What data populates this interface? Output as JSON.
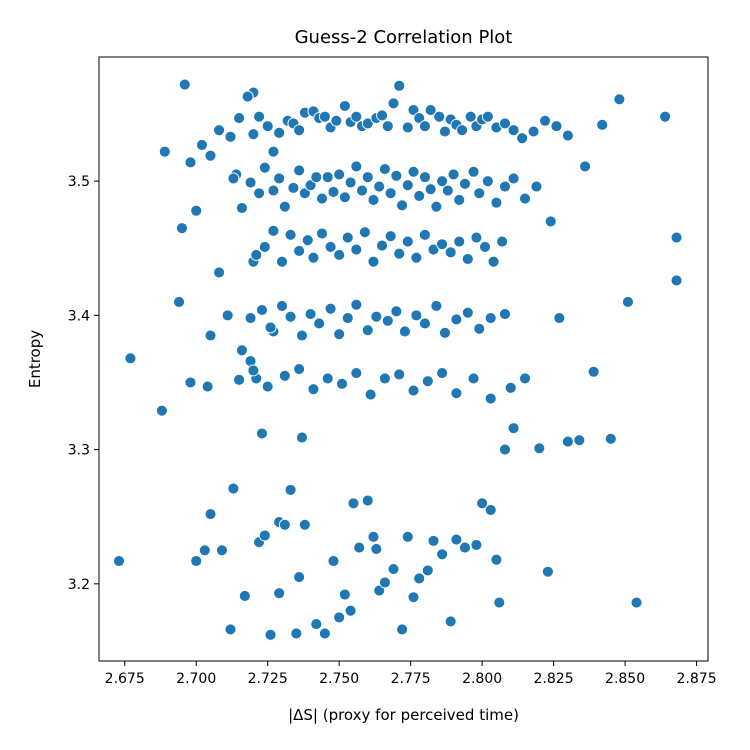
{
  "chart_data": {
    "type": "scatter",
    "title": "Guess-2 Correlation Plot",
    "xlabel": "|ΔS| (proxy for perceived time)",
    "ylabel": "Entropy",
    "xlim": [
      2.666,
      2.879
    ],
    "ylim": [
      3.1425,
      3.5925
    ],
    "xticks": [
      2.675,
      2.7,
      2.725,
      2.75,
      2.775,
      2.8,
      2.825,
      2.85,
      2.875
    ],
    "xtick_labels": [
      "2.675",
      "2.700",
      "2.725",
      "2.750",
      "2.775",
      "2.800",
      "2.825",
      "2.850",
      "2.875"
    ],
    "yticks": [
      3.2,
      3.3,
      3.4,
      3.5
    ],
    "ytick_labels": [
      "3.2",
      "3.3",
      "3.4",
      "3.5"
    ],
    "grid": false,
    "series": [
      {
        "color": "#1f77b4",
        "x": [
          2.673,
          2.677,
          2.688,
          2.689,
          2.694,
          2.695,
          2.696,
          2.698,
          2.698,
          2.7,
          2.702,
          2.703,
          2.704,
          2.705,
          2.705,
          2.708,
          2.709,
          2.711,
          2.712,
          2.713,
          2.714,
          2.716,
          2.717,
          2.719,
          2.72,
          2.72,
          2.721,
          2.722,
          2.723,
          2.724,
          2.726,
          2.727,
          2.729,
          2.729,
          2.731,
          2.733,
          2.735,
          2.736,
          2.737,
          2.738,
          2.742,
          2.745,
          2.748,
          2.75,
          2.752,
          2.754,
          2.755,
          2.757,
          2.76,
          2.762,
          2.763,
          2.764,
          2.766,
          2.769,
          2.772,
          2.774,
          2.776,
          2.778,
          2.781,
          2.783,
          2.786,
          2.789,
          2.791,
          2.794,
          2.798,
          2.8,
          2.803,
          2.805,
          2.806,
          2.808,
          2.811,
          2.815,
          2.82,
          2.823,
          2.827,
          2.83,
          2.834,
          2.839,
          2.845,
          2.851,
          2.854,
          2.864,
          2.868,
          2.868,
          2.7,
          2.705,
          2.708,
          2.712,
          2.715,
          2.718,
          2.72,
          2.722,
          2.725,
          2.727,
          2.729,
          2.732,
          2.734,
          2.736,
          2.738,
          2.741,
          2.743,
          2.745,
          2.747,
          2.749,
          2.752,
          2.754,
          2.756,
          2.758,
          2.76,
          2.763,
          2.765,
          2.767,
          2.769,
          2.771,
          2.774,
          2.776,
          2.778,
          2.78,
          2.782,
          2.785,
          2.787,
          2.789,
          2.791,
          2.793,
          2.796,
          2.798,
          2.8,
          2.802,
          2.805,
          2.808,
          2.811,
          2.814,
          2.818,
          2.822,
          2.826,
          2.83,
          2.836,
          2.842,
          2.848,
          2.713,
          2.716,
          2.719,
          2.722,
          2.724,
          2.727,
          2.729,
          2.731,
          2.734,
          2.736,
          2.738,
          2.74,
          2.742,
          2.744,
          2.746,
          2.748,
          2.75,
          2.752,
          2.754,
          2.756,
          2.758,
          2.76,
          2.762,
          2.764,
          2.766,
          2.768,
          2.77,
          2.772,
          2.774,
          2.776,
          2.778,
          2.78,
          2.782,
          2.784,
          2.786,
          2.788,
          2.79,
          2.792,
          2.794,
          2.797,
          2.799,
          2.802,
          2.805,
          2.808,
          2.811,
          2.815,
          2.819,
          2.824,
          2.721,
          2.724,
          2.727,
          2.73,
          2.733,
          2.736,
          2.739,
          2.741,
          2.744,
          2.747,
          2.75,
          2.753,
          2.756,
          2.759,
          2.762,
          2.765,
          2.768,
          2.771,
          2.774,
          2.777,
          2.78,
          2.783,
          2.786,
          2.789,
          2.792,
          2.795,
          2.798,
          2.801,
          2.804,
          2.807,
          2.719,
          2.723,
          2.726,
          2.73,
          2.733,
          2.737,
          2.74,
          2.743,
          2.747,
          2.75,
          2.753,
          2.756,
          2.76,
          2.763,
          2.767,
          2.77,
          2.773,
          2.777,
          2.78,
          2.784,
          2.787,
          2.791,
          2.795,
          2.799,
          2.803,
          2.808,
          2.715,
          2.72,
          2.725,
          2.731,
          2.736,
          2.741,
          2.746,
          2.751,
          2.756,
          2.761,
          2.766,
          2.771,
          2.776,
          2.781,
          2.786,
          2.791,
          2.797,
          2.803,
          2.81
        ],
        "y": [
          3.217,
          3.368,
          3.329,
          3.522,
          3.41,
          3.465,
          3.572,
          3.514,
          3.35,
          3.217,
          3.527,
          3.225,
          3.347,
          3.385,
          3.252,
          3.432,
          3.225,
          3.4,
          3.166,
          3.271,
          3.505,
          3.374,
          3.191,
          3.366,
          3.44,
          3.566,
          3.353,
          3.231,
          3.312,
          3.236,
          3.162,
          3.388,
          3.246,
          3.193,
          3.244,
          3.27,
          3.163,
          3.205,
          3.309,
          3.244,
          3.17,
          3.163,
          3.217,
          3.175,
          3.192,
          3.18,
          3.26,
          3.227,
          3.262,
          3.235,
          3.226,
          3.195,
          3.201,
          3.211,
          3.166,
          3.235,
          3.19,
          3.204,
          3.21,
          3.232,
          3.222,
          3.172,
          3.233,
          3.227,
          3.229,
          3.26,
          3.255,
          3.218,
          3.186,
          3.3,
          3.316,
          3.353,
          3.301,
          3.209,
          3.398,
          3.306,
          3.307,
          3.358,
          3.308,
          3.41,
          3.186,
          3.548,
          3.426,
          3.458,
          3.478,
          3.519,
          3.538,
          3.533,
          3.547,
          3.563,
          3.535,
          3.548,
          3.541,
          3.522,
          3.536,
          3.545,
          3.543,
          3.538,
          3.551,
          3.552,
          3.547,
          3.548,
          3.54,
          3.545,
          3.556,
          3.544,
          3.548,
          3.541,
          3.543,
          3.547,
          3.549,
          3.541,
          3.558,
          3.571,
          3.54,
          3.553,
          3.547,
          3.541,
          3.553,
          3.548,
          3.537,
          3.546,
          3.542,
          3.538,
          3.548,
          3.541,
          3.546,
          3.548,
          3.54,
          3.543,
          3.538,
          3.532,
          3.537,
          3.545,
          3.541,
          3.534,
          3.511,
          3.542,
          3.561,
          3.502,
          3.48,
          3.499,
          3.491,
          3.51,
          3.493,
          3.502,
          3.481,
          3.495,
          3.508,
          3.491,
          3.497,
          3.503,
          3.487,
          3.503,
          3.492,
          3.505,
          3.488,
          3.499,
          3.511,
          3.493,
          3.503,
          3.486,
          3.496,
          3.509,
          3.491,
          3.504,
          3.482,
          3.497,
          3.507,
          3.489,
          3.503,
          3.494,
          3.481,
          3.5,
          3.493,
          3.505,
          3.486,
          3.498,
          3.507,
          3.491,
          3.5,
          3.484,
          3.496,
          3.502,
          3.487,
          3.496,
          3.47,
          3.445,
          3.451,
          3.463,
          3.44,
          3.46,
          3.448,
          3.456,
          3.443,
          3.461,
          3.451,
          3.445,
          3.458,
          3.449,
          3.462,
          3.44,
          3.452,
          3.459,
          3.446,
          3.455,
          3.443,
          3.46,
          3.449,
          3.453,
          3.447,
          3.455,
          3.442,
          3.458,
          3.451,
          3.44,
          3.455,
          3.398,
          3.404,
          3.391,
          3.407,
          3.399,
          3.385,
          3.401,
          3.394,
          3.405,
          3.386,
          3.398,
          3.408,
          3.389,
          3.399,
          3.396,
          3.403,
          3.388,
          3.4,
          3.394,
          3.407,
          3.387,
          3.397,
          3.402,
          3.39,
          3.398,
          3.401,
          3.352,
          3.359,
          3.347,
          3.355,
          3.36,
          3.345,
          3.353,
          3.349,
          3.357,
          3.341,
          3.353,
          3.356,
          3.344,
          3.351,
          3.357,
          3.342,
          3.353,
          3.338,
          3.346
        ]
      }
    ]
  }
}
